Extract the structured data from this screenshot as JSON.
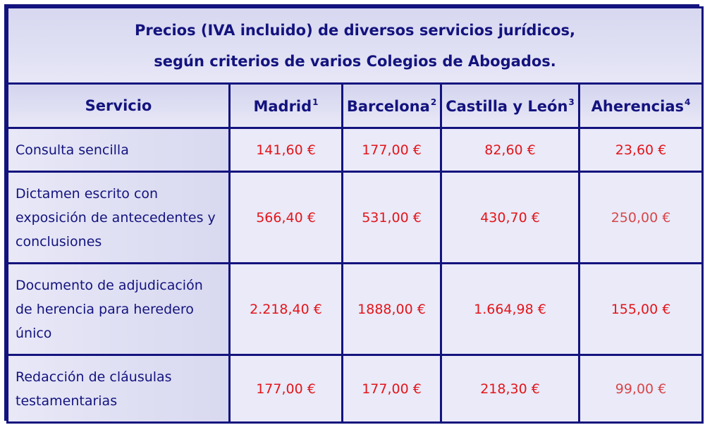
{
  "title": {
    "line1": "Precios (IVA incluido) de diversos servicios jurídicos,",
    "line2": "según criterios de varios Colegios de Abogados."
  },
  "columns": [
    {
      "label": "Servicio",
      "sup": ""
    },
    {
      "label": "Madrid",
      "sup": "1"
    },
    {
      "label": "Barcelona",
      "sup": "2"
    },
    {
      "label": "Castilla y León",
      "sup": "3"
    },
    {
      "label": "Aherencias",
      "sup": "4"
    }
  ],
  "rows": [
    {
      "service": [
        "Consulta sencilla"
      ],
      "prices": [
        "141,60 €",
        "177,00 €",
        "82,60 €",
        "23,60 €"
      ]
    },
    {
      "service": [
        "Dictamen escrito con",
        "exposición de antecedentes y",
        "conclusiones"
      ],
      "prices": [
        "566,40 €",
        "531,00 €",
        "430,70 €",
        "250,00 €"
      ]
    },
    {
      "service": [
        "Documento de adjudicación",
        "de herencia para heredero",
        "único"
      ],
      "prices": [
        "2.218,40 €",
        "1888,00 €",
        "1.664,98 €",
        "155,00 €"
      ]
    },
    {
      "service": [
        "Redacción de cláusulas",
        "testamentarias"
      ],
      "prices": [
        "177,00 €",
        "177,00 €",
        "218,30 €",
        "99,00 €"
      ]
    }
  ],
  "colors": {
    "border": "#13137e",
    "text": "#13137e",
    "price": "#e3151a"
  }
}
